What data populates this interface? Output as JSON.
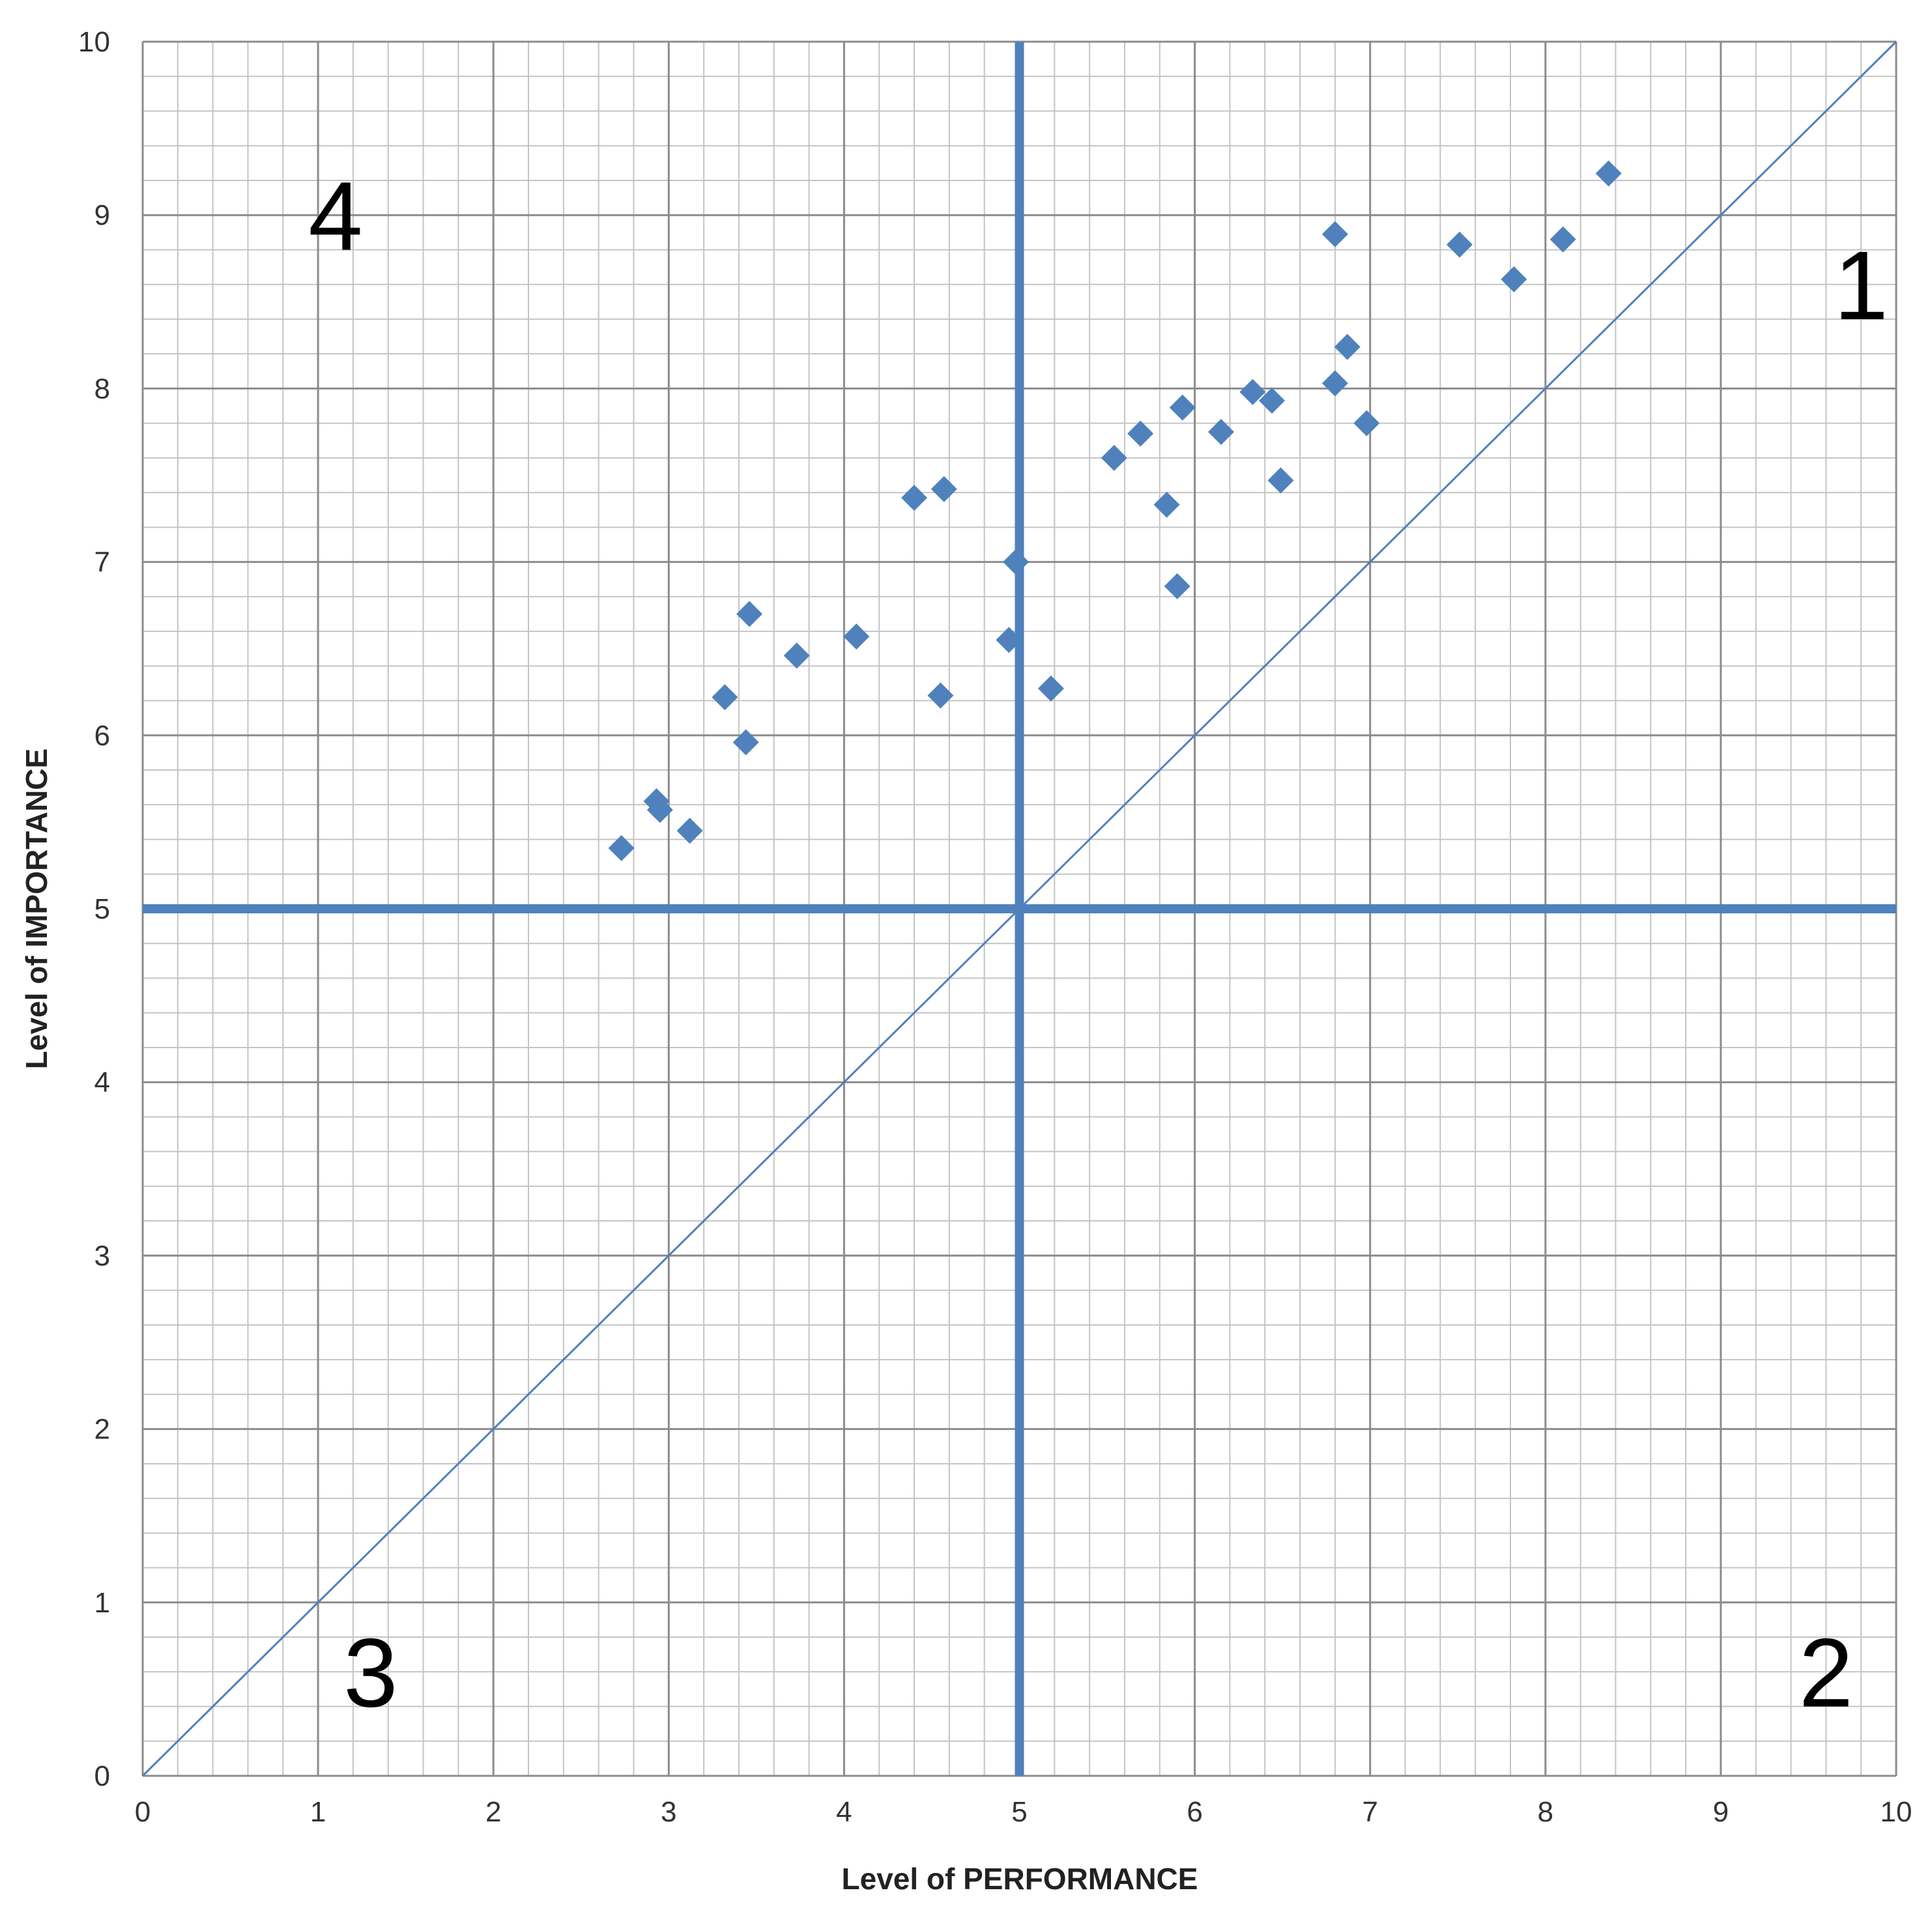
{
  "chart_data": {
    "type": "scatter",
    "title": "",
    "xlabel": "Level of PERFORMANCE",
    "ylabel": "Level of IMPORTANCE",
    "xlim": [
      0,
      10
    ],
    "ylim": [
      0,
      10
    ],
    "xticks": [
      "0",
      "1",
      "2",
      "3",
      "4",
      "5",
      "6",
      "7",
      "8",
      "9",
      "10"
    ],
    "yticks": [
      "0",
      "1",
      "2",
      "3",
      "4",
      "5",
      "6",
      "7",
      "8",
      "9",
      "10"
    ],
    "grid": true,
    "minor_grid_step": 0.2,
    "marker": "diamond",
    "marker_color": "#4f81bd",
    "line_color": "#4f81bd",
    "quadrant_lines": {
      "x": 5,
      "y": 5
    },
    "diagonal": [
      [
        0,
        0
      ],
      [
        10,
        10
      ]
    ],
    "quadrant_labels": [
      "1",
      "2",
      "3",
      "4"
    ],
    "points": [
      {
        "x": 2.73,
        "y": 5.35
      },
      {
        "x": 2.93,
        "y": 5.62
      },
      {
        "x": 2.95,
        "y": 5.57
      },
      {
        "x": 3.12,
        "y": 5.45
      },
      {
        "x": 3.32,
        "y": 6.22
      },
      {
        "x": 3.44,
        "y": 5.96
      },
      {
        "x": 3.46,
        "y": 6.7
      },
      {
        "x": 3.73,
        "y": 6.46
      },
      {
        "x": 4.07,
        "y": 6.57
      },
      {
        "x": 4.4,
        "y": 7.37
      },
      {
        "x": 4.55,
        "y": 6.23
      },
      {
        "x": 4.57,
        "y": 7.42
      },
      {
        "x": 4.94,
        "y": 6.55
      },
      {
        "x": 4.98,
        "y": 7.0
      },
      {
        "x": 5.18,
        "y": 6.27
      },
      {
        "x": 5.54,
        "y": 7.6
      },
      {
        "x": 5.69,
        "y": 7.74
      },
      {
        "x": 5.84,
        "y": 7.33
      },
      {
        "x": 5.9,
        "y": 6.86
      },
      {
        "x": 5.93,
        "y": 7.89
      },
      {
        "x": 6.15,
        "y": 7.75
      },
      {
        "x": 6.33,
        "y": 7.98
      },
      {
        "x": 6.44,
        "y": 7.93
      },
      {
        "x": 6.49,
        "y": 7.47
      },
      {
        "x": 6.8,
        "y": 8.03
      },
      {
        "x": 6.8,
        "y": 8.89
      },
      {
        "x": 6.87,
        "y": 8.24
      },
      {
        "x": 6.98,
        "y": 7.8
      },
      {
        "x": 7.51,
        "y": 8.83
      },
      {
        "x": 7.82,
        "y": 8.63
      },
      {
        "x": 8.1,
        "y": 8.86
      },
      {
        "x": 8.36,
        "y": 9.24
      }
    ]
  }
}
